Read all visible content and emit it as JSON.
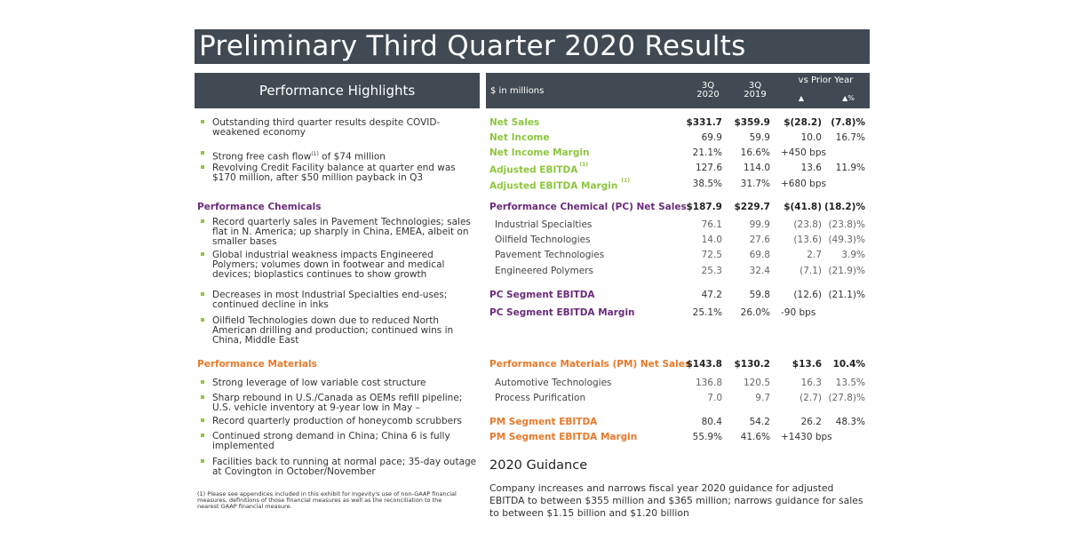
{
  "title": "Preliminary Third Quarter 2020 Results",
  "colors": {
    "header": "#414a52",
    "green": "#8dc63f",
    "purple": "#6b2c7a",
    "orange": "#e8792b"
  },
  "highlights": {
    "heading": "Performance Highlights",
    "general": [
      "Outstanding third quarter results despite COVID-weakened economy",
      "Strong free cash flow",
      "of $74 million",
      "Revolving Credit Facility balance at quarter end was $170 million, after $50 million payback in Q3"
    ],
    "fcf_sup": "(1)",
    "chemicals_heading": "Performance Chemicals",
    "chemicals": [
      "Record quarterly sales in Pavement Technologies; sales flat in N. America; up sharply in China, EMEA, albeit on smaller bases",
      "Global industrial weakness impacts Engineered Polymers; volumes down in footwear and medical devices; bioplastics continues to show growth",
      "Decreases in most Industrial Specialties end-uses; continued decline in inks",
      "Oilfield Technologies down due to reduced North American drilling and production; continued wins in China, Middle East"
    ],
    "materials_heading": "Performance Materials",
    "materials": [
      "Strong leverage of low variable cost structure",
      "Sharp rebound in U.S./Canada as OEMs refill pipeline; U.S. vehicle inventory at 9-year low in May –",
      "Record quarterly production of honeycomb scrubbers",
      "Continued strong demand in China; China 6 is fully implemented",
      "Facilities back to running at normal pace; 35-day outage at Covington in October/November"
    ],
    "footnote": "(1) Please see appendices included in this exhibit for Ingevity's use of non-GAAP financial measures, definitions of those financial measures as well as the reconciliation to the nearest GAAP financial measure."
  },
  "table": {
    "units": "$ in millions",
    "col1": "3Q 2020",
    "col1a": "3Q",
    "col1b": "2020",
    "col2a": "3Q",
    "col2b": "2019",
    "vs": "vs Prior Year",
    "delta": "▲",
    "delta_pct": "▲%",
    "rows": [
      {
        "label": "Net Sales",
        "v": [
          "$331.7",
          "$359.9",
          "$(28.2)",
          "(7.8)%"
        ],
        "color": "green",
        "style": "bold"
      },
      {
        "label": "Net Income",
        "v": [
          "69.9",
          "59.9",
          "10.0",
          "16.7%"
        ],
        "color": "green"
      },
      {
        "label": "Net Income Margin",
        "v": [
          "21.1%",
          "16.6%",
          "+450 bps",
          ""
        ],
        "color": "green"
      },
      {
        "label": "Adjusted EBITDA",
        "sup": "(1)",
        "v": [
          "127.6",
          "114.0",
          "13.6",
          "11.9%"
        ],
        "color": "green"
      },
      {
        "label": "Adjusted EBITDA Margin",
        "sup": " (1)",
        "v": [
          "38.5%",
          "31.7%",
          "+680 bps",
          ""
        ],
        "color": "green"
      },
      {
        "label": "Performance Chemical (PC) Net Sales",
        "v": [
          "$187.9",
          "$229.7",
          "$(41.8)",
          "(18.2)%"
        ],
        "color": "purple",
        "style": "bold"
      },
      {
        "label": "Industrial Specialties",
        "v": [
          "76.1",
          "99.9",
          "(23.8)",
          "(23.8)%"
        ],
        "style": "sub"
      },
      {
        "label": "Oilfield Technologies",
        "v": [
          "14.0",
          "27.6",
          "(13.6)",
          "(49.3)%"
        ],
        "style": "sub"
      },
      {
        "label": "Pavement Technologies",
        "v": [
          "72.5",
          "69.8",
          "2.7",
          "3.9%"
        ],
        "style": "sub"
      },
      {
        "label": "Engineered Polymers",
        "v": [
          "25.3",
          "32.4",
          "(7.1)",
          "(21.9)%"
        ],
        "style": "sub"
      },
      {
        "label": "PC Segment EBITDA",
        "v": [
          "47.2",
          "59.8",
          "(12.6)",
          "(21.1)%"
        ],
        "color": "purple"
      },
      {
        "label": "PC Segment EBITDA Margin",
        "v": [
          "25.1%",
          "26.0%",
          "-90 bps",
          ""
        ],
        "color": "purple"
      },
      {
        "label": "Performance Materials (PM) Net Sales",
        "v": [
          "$143.8",
          "$130.2",
          "$13.6",
          "10.4%"
        ],
        "color": "orange",
        "style": "bold"
      },
      {
        "label": "Automotive Technologies",
        "v": [
          "136.8",
          "120.5",
          "16.3",
          "13.5%"
        ],
        "style": "sub"
      },
      {
        "label": "Process Purification",
        "v": [
          "7.0",
          "9.7",
          "(2.7)",
          "(27.8)%"
        ],
        "style": "sub"
      },
      {
        "label": "PM Segment EBITDA",
        "v": [
          "80.4",
          "54.2",
          "26.2",
          "48.3%"
        ],
        "color": "orange"
      },
      {
        "label": "PM Segment EBITDA Margin",
        "v": [
          "55.9%",
          "41.6%",
          "+1430 bps",
          ""
        ],
        "color": "orange"
      }
    ]
  },
  "guidance": {
    "title": "2020 Guidance",
    "text": "Company increases and narrows fiscal year 2020 guidance for adjusted EBITDA to between $355 million and $365 million; narrows guidance for sales to between $1.15 billion and $1.20 billion"
  }
}
